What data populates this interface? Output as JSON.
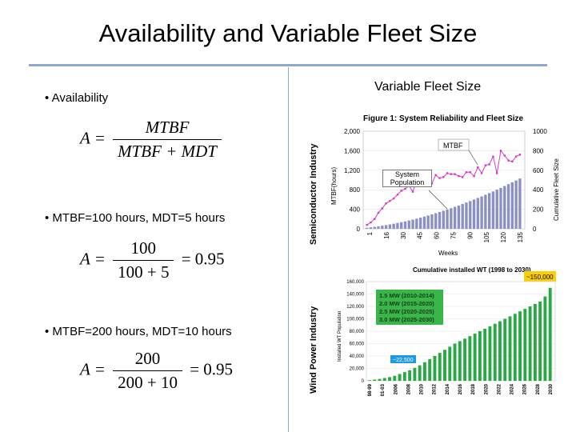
{
  "title": "Availability and Variable Fleet Size",
  "left": {
    "bullet1": "• Availability",
    "formula1": {
      "lhs": "A =",
      "num": "MTBF",
      "den": "MTBF + MDT"
    },
    "bullet2": "• MTBF=100 hours, MDT=5 hours",
    "formula2": {
      "lhs": "A =",
      "num": "100",
      "den": "100 + 5",
      "rhs": "= 0.95"
    },
    "bullet3": "• MTBF=200 hours, MDT=10 hours",
    "formula3": {
      "lhs": "A =",
      "num": "200",
      "den": "200 + 10",
      "rhs": "= 0.95"
    }
  },
  "right": {
    "title": "Variable Fleet Size",
    "label_top": "Semiconductor Industry",
    "label_bottom": "Wind Power Industry"
  },
  "chart_data": [
    {
      "type": "bar",
      "title": "Figure 1: System Reliability and Fleet Size",
      "xlabel": "Weeks",
      "ylabel": "MTBF(hours)",
      "ylabel_right": "Cumulative Fleet Size",
      "ylim": [
        0,
        2000
      ],
      "ylim_right": [
        0,
        1000
      ],
      "yticks": [
        "0",
        "400",
        "800",
        "1,200",
        "1,600",
        "2,000"
      ],
      "yticks_right": [
        "0",
        "200",
        "400",
        "600",
        "800",
        "1000"
      ],
      "xticks": [
        "1",
        "16",
        "30",
        "45",
        "60",
        "75",
        "90",
        "105",
        "120",
        "135"
      ],
      "annotations": [
        "MTBF",
        "System Population"
      ],
      "series": [
        {
          "name": "System Population",
          "axis": "right",
          "color": "#8a8fc4",
          "values": [
            10,
            15,
            20,
            25,
            32,
            38,
            45,
            52,
            60,
            68,
            76,
            85,
            94,
            104,
            114,
            125,
            136,
            148,
            160,
            172,
            185,
            198,
            211,
            225,
            239,
            254,
            269,
            284,
            300,
            316,
            332,
            349,
            366,
            383,
            401,
            419,
            438,
            457,
            476,
            495,
            515
          ]
        },
        {
          "name": "MTBF",
          "axis": "left",
          "color": "#d43bc4",
          "values": [
            80,
            130,
            200,
            330,
            420,
            520,
            570,
            620,
            700,
            780,
            820,
            880,
            760,
            980,
            1000,
            1040,
            980,
            930,
            1100,
            1040,
            1060,
            1140,
            1120,
            1120,
            1080,
            1060,
            1160,
            1160,
            1080,
            1260,
            1140,
            1300,
            1320,
            1480,
            1140,
            1600,
            1500,
            1400,
            1380,
            1480,
            1520
          ]
        }
      ]
    },
    {
      "type": "bar",
      "title": "Cumulative installed WT (1998 to 2030)",
      "ylabel": "Installed WT Population",
      "ylim": [
        0,
        160000
      ],
      "yticks": [
        "0",
        "20,000",
        "40,000",
        "60,000",
        "80,000",
        "100,000",
        "120,000",
        "140,000",
        "160,000"
      ],
      "xticks": [
        "98-99",
        "01-03",
        "2006",
        "2008",
        "2010",
        "2012",
        "2014",
        "2016",
        "2018",
        "2020",
        "2022",
        "2024",
        "2026",
        "2028",
        "2030"
      ],
      "annotations": [
        "~150,000",
        "~22,500"
      ],
      "legend": [
        "1.5 MW (2010-2014)",
        "2.0 MW (2015-2020)",
        "2.5 MW (2020-2025)",
        "3.0 MW (2025-2030)"
      ],
      "series": [
        {
          "name": "Installed WT",
          "color": "#2aa845",
          "values": [
            1000,
            2000,
            3000,
            4500,
            6000,
            8000,
            11000,
            14000,
            17000,
            21000,
            25000,
            30000,
            35000,
            40000,
            45000,
            50000,
            55000,
            60000,
            64000,
            68000,
            72000,
            76000,
            80000,
            84000,
            88000,
            92000,
            96000,
            100000,
            104000,
            108000,
            112000,
            116000,
            120000,
            124000,
            128000,
            136000,
            150000
          ]
        }
      ]
    }
  ]
}
